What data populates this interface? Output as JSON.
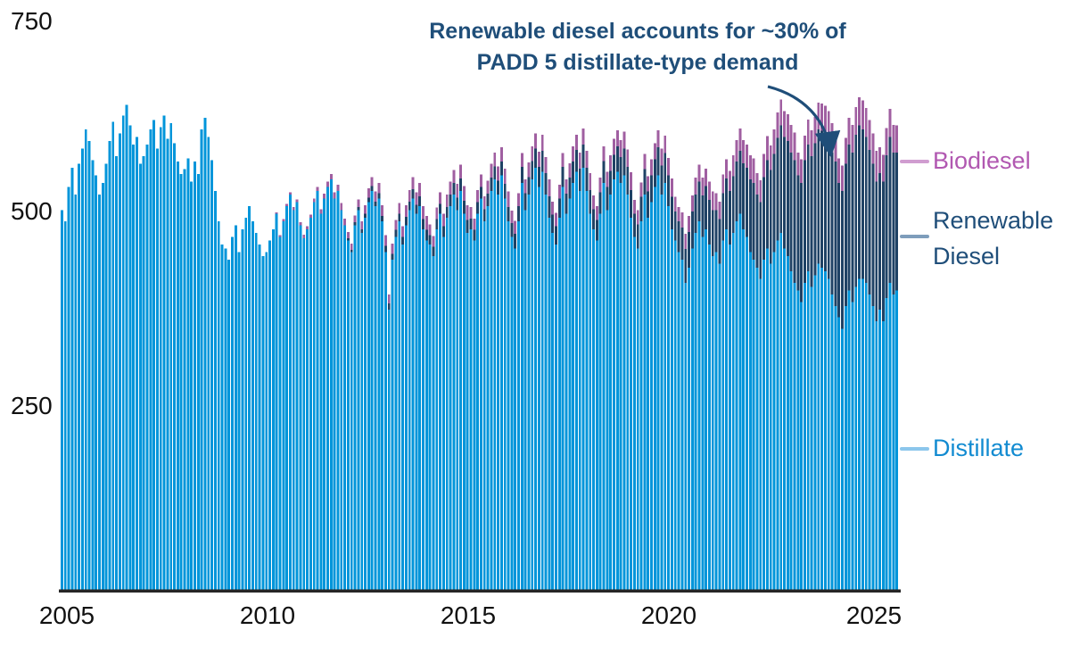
{
  "chart_data": {
    "type": "bar",
    "stacked": true,
    "x_unit": "month",
    "x_range": {
      "start": "2005-01",
      "end": "2025-06"
    },
    "x_tick_labels": [
      "2005",
      "2010",
      "2015",
      "2020",
      "2025"
    ],
    "y_tick_labels": [
      "250",
      "500",
      "750"
    ],
    "ylim": [
      0,
      750
    ],
    "grid": false,
    "annotation": {
      "line1": "Renewable diesel accounts for ~30% of",
      "line2": "PADD 5 distillate-type demand",
      "color": "#1F4E79"
    },
    "legend": [
      {
        "label": "Biodiesel",
        "text_color": "#B158B1",
        "connector_color": "#D09DD0"
      },
      {
        "label": "Renewable Diesel",
        "text_color": "#1F4E79",
        "connector_color": "#7E9DBB"
      },
      {
        "label": "Distillate",
        "text_color": "#128BD1",
        "connector_color": "#8CC6EC"
      }
    ],
    "axis_line_color": "#262626",
    "series": [
      {
        "name": "Distillate",
        "color": "#0095DA",
        "values": {
          "2005": [
            495,
            480,
            525,
            550,
            515,
            555,
            575,
            600,
            585,
            560,
            540,
            515
          ],
          "2006": [
            530,
            555,
            585,
            610,
            565,
            595,
            618,
            632,
            605,
            580,
            590,
            555
          ],
          "2007": [
            565,
            580,
            600,
            612,
            575,
            603,
            618,
            588,
            608,
            582,
            558,
            542
          ],
          "2008": [
            548,
            562,
            532,
            558,
            542,
            600,
            615,
            590,
            560,
            520,
            480,
            450
          ],
          "2009": [
            445,
            430,
            460,
            475,
            440,
            470,
            485,
            500,
            480,
            465,
            450,
            435
          ],
          "2010": [
            440,
            455,
            470,
            490,
            460,
            480,
            500,
            515,
            495,
            505,
            475,
            458
          ],
          "2011": [
            470,
            485,
            505,
            520,
            490,
            510,
            525,
            535,
            510,
            520,
            495,
            475
          ],
          "2012": [
            455,
            440,
            475,
            495,
            465,
            485,
            505,
            520,
            500,
            510,
            480,
            440
          ],
          "2013": [
            365,
            430,
            460,
            480,
            450,
            475,
            495,
            510,
            490,
            500,
            470,
            455
          ],
          "2014": [
            450,
            435,
            470,
            490,
            460,
            485,
            500,
            515,
            495,
            520,
            490,
            465
          ],
          "2015": [
            470,
            455,
            490,
            510,
            480,
            500,
            520,
            535,
            515,
            540,
            510,
            480
          ],
          "2016": [
            460,
            445,
            480,
            530,
            495,
            515,
            535,
            550,
            525,
            545,
            515,
            485
          ],
          "2017": [
            465,
            450,
            485,
            525,
            490,
            510,
            530,
            545,
            520,
            550,
            520,
            490
          ],
          "2018": [
            470,
            455,
            490,
            530,
            495,
            515,
            535,
            545,
            530,
            540,
            515,
            485
          ],
          "2019": [
            460,
            445,
            480,
            515,
            485,
            505,
            525,
            540,
            515,
            530,
            500,
            470
          ],
          "2020": [
            455,
            440,
            430,
            400,
            420,
            445,
            465,
            480,
            460,
            470,
            450,
            435
          ],
          "2021": [
            440,
            425,
            455,
            470,
            450,
            465,
            480,
            490,
            470,
            460,
            440,
            430
          ],
          "2022": [
            420,
            405,
            430,
            445,
            425,
            440,
            455,
            465,
            445,
            435,
            415,
            400
          ],
          "2023": [
            390,
            375,
            400,
            415,
            395,
            410,
            425,
            420,
            415,
            405,
            385,
            370
          ],
          "2024": [
            355,
            340,
            370,
            390,
            375,
            395,
            405,
            405,
            400,
            385,
            370,
            350
          ],
          "2025": [
            365,
            350,
            380,
            400,
            385,
            390
          ]
        }
      },
      {
        "name": "Renewable Diesel",
        "color": "#1F4265",
        "values": {
          "2005": [
            0,
            0,
            0,
            0,
            0,
            0,
            0,
            0,
            0,
            0,
            0,
            0
          ],
          "2006": [
            0,
            0,
            0,
            0,
            0,
            0,
            0,
            0,
            0,
            0,
            0,
            0
          ],
          "2007": [
            0,
            0,
            0,
            0,
            0,
            0,
            0,
            0,
            0,
            0,
            0,
            0
          ],
          "2008": [
            0,
            0,
            0,
            0,
            0,
            0,
            0,
            0,
            0,
            0,
            0,
            0
          ],
          "2009": [
            0,
            0,
            0,
            0,
            0,
            0,
            0,
            0,
            0,
            0,
            0,
            0
          ],
          "2010": [
            0,
            0,
            0,
            0,
            0,
            0,
            0,
            0,
            0,
            0,
            0,
            0
          ],
          "2011": [
            0,
            0,
            0,
            0,
            0,
            0,
            0,
            0,
            0,
            0,
            0,
            0
          ],
          "2012": [
            3,
            3,
            4,
            4,
            5,
            5,
            6,
            6,
            6,
            7,
            7,
            8
          ],
          "2013": [
            8,
            8,
            9,
            10,
            10,
            11,
            11,
            12,
            12,
            13,
            13,
            14
          ],
          "2014": [
            12,
            12,
            13,
            13,
            14,
            14,
            15,
            15,
            16,
            16,
            17,
            17
          ],
          "2015": [
            14,
            14,
            15,
            15,
            16,
            16,
            17,
            17,
            18,
            18,
            19,
            19
          ],
          "2016": [
            18,
            19,
            20,
            21,
            22,
            23,
            24,
            25,
            26,
            27,
            28,
            28
          ],
          "2017": [
            24,
            24,
            25,
            26,
            26,
            27,
            28,
            28,
            29,
            30,
            30,
            31
          ],
          "2018": [
            26,
            27,
            28,
            29,
            30,
            31,
            32,
            33,
            34,
            35,
            36,
            36
          ],
          "2019": [
            30,
            31,
            32,
            33,
            34,
            35,
            36,
            37,
            38,
            39,
            40,
            42
          ],
          "2020": [
            38,
            40,
            42,
            44,
            46,
            48,
            50,
            52,
            54,
            56,
            58,
            60
          ],
          "2021": [
            55,
            58,
            62,
            66,
            70,
            74,
            78,
            82,
            86,
            90,
            95,
            100
          ],
          "2022": [
            95,
            100,
            108,
            115,
            122,
            128,
            134,
            140,
            145,
            150,
            155,
            160
          ],
          "2023": [
            150,
            155,
            160,
            165,
            170,
            172,
            175,
            178,
            180,
            182,
            185,
            188
          ],
          "2024": [
            175,
            180,
            185,
            190,
            195,
            198,
            200,
            195,
            190,
            188,
            185,
            182
          ],
          "2025": [
            178,
            182,
            186,
            190,
            185,
            180
          ]
        }
      },
      {
        "name": "Biodiesel",
        "color": "#A05FA1",
        "values": {
          "2005": [
            0,
            0,
            0,
            0,
            0,
            0,
            0,
            0,
            0,
            0,
            0,
            0
          ],
          "2006": [
            0,
            0,
            0,
            0,
            0,
            0,
            0,
            0,
            0,
            0,
            0,
            0
          ],
          "2007": [
            0,
            0,
            0,
            0,
            0,
            0,
            0,
            0,
            0,
            0,
            0,
            0
          ],
          "2008": [
            0,
            0,
            0,
            0,
            0,
            0,
            0,
            0,
            0,
            0,
            0,
            0
          ],
          "2009": [
            0,
            0,
            0,
            0,
            0,
            0,
            0,
            0,
            0,
            0,
            0,
            0
          ],
          "2010": [
            0,
            0,
            0,
            2,
            2,
            3,
            3,
            3,
            4,
            4,
            4,
            5
          ],
          "2011": [
            4,
            4,
            5,
            5,
            6,
            6,
            7,
            7,
            8,
            8,
            9,
            9
          ],
          "2012": [
            8,
            8,
            9,
            10,
            10,
            11,
            12,
            12,
            13,
            13,
            14,
            14
          ],
          "2013": [
            12,
            13,
            13,
            14,
            14,
            15,
            15,
            16,
            16,
            17,
            17,
            18
          ],
          "2014": [
            14,
            14,
            15,
            15,
            16,
            16,
            17,
            17,
            18,
            18,
            19,
            19
          ],
          "2015": [
            15,
            15,
            16,
            16,
            17,
            17,
            18,
            18,
            19,
            19,
            20,
            20
          ],
          "2016": [
            16,
            17,
            17,
            18,
            18,
            19,
            19,
            20,
            20,
            21,
            21,
            22
          ],
          "2017": [
            17,
            17,
            18,
            18,
            19,
            19,
            20,
            20,
            21,
            21,
            22,
            22
          ],
          "2018": [
            18,
            18,
            19,
            19,
            20,
            20,
            21,
            21,
            22,
            22,
            23,
            23
          ],
          "2019": [
            18,
            19,
            19,
            20,
            20,
            21,
            21,
            22,
            22,
            23,
            23,
            24
          ],
          "2020": [
            19,
            19,
            20,
            20,
            21,
            21,
            22,
            22,
            23,
            23,
            24,
            24
          ],
          "2021": [
            22,
            23,
            24,
            25,
            26,
            27,
            28,
            29,
            30,
            30,
            31,
            32
          ],
          "2022": [
            28,
            29,
            30,
            31,
            32,
            32,
            33,
            34,
            34,
            35,
            36,
            36
          ],
          "2023": [
            30,
            31,
            32,
            33,
            34,
            34,
            35,
            36,
            36,
            37,
            38,
            38
          ],
          "2024": [
            32,
            33,
            34,
            35,
            36,
            36,
            37,
            38,
            38,
            39,
            40,
            40
          ],
          "2025": [
            34,
            35,
            36,
            37,
            36,
            35
          ]
        }
      }
    ]
  }
}
